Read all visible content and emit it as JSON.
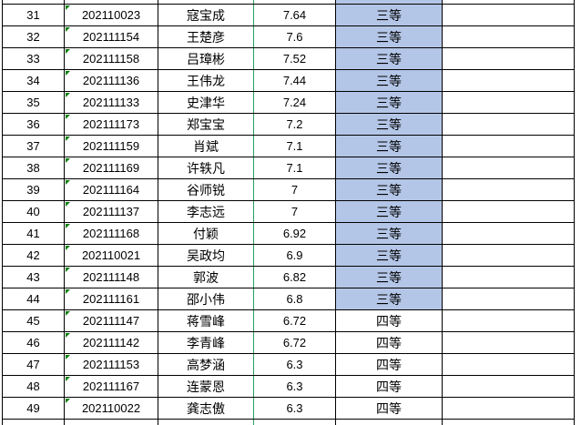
{
  "colors": {
    "grid_line": "#000000",
    "grade_highlight": "#b4c6e7",
    "page_break_line": "#1fa463",
    "error_indicator": "#0a7f0a",
    "cell_background": "#ffffff",
    "text": "#000000"
  },
  "table": {
    "rows": [
      {
        "rank": "31",
        "student_id": "202110023",
        "name": "寇宝成",
        "score": "7.64",
        "grade": "三等",
        "highlighted": true
      },
      {
        "rank": "32",
        "student_id": "202111154",
        "name": "王楚彦",
        "score": "7.6",
        "grade": "三等",
        "highlighted": true
      },
      {
        "rank": "33",
        "student_id": "202111158",
        "name": "吕璋彬",
        "score": "7.52",
        "grade": "三等",
        "highlighted": true
      },
      {
        "rank": "34",
        "student_id": "202111136",
        "name": "王伟龙",
        "score": "7.44",
        "grade": "三等",
        "highlighted": true
      },
      {
        "rank": "35",
        "student_id": "202111133",
        "name": "史津华",
        "score": "7.24",
        "grade": "三等",
        "highlighted": true
      },
      {
        "rank": "36",
        "student_id": "202111173",
        "name": "郑宝宝",
        "score": "7.2",
        "grade": "三等",
        "highlighted": true
      },
      {
        "rank": "37",
        "student_id": "202111159",
        "name": "肖斌",
        "score": "7.1",
        "grade": "三等",
        "highlighted": true
      },
      {
        "rank": "38",
        "student_id": "202111169",
        "name": "许轶凡",
        "score": "7.1",
        "grade": "三等",
        "highlighted": true
      },
      {
        "rank": "39",
        "student_id": "202111164",
        "name": "谷师锐",
        "score": "7",
        "grade": "三等",
        "highlighted": true
      },
      {
        "rank": "40",
        "student_id": "202111137",
        "name": "李志远",
        "score": "7",
        "grade": "三等",
        "highlighted": true
      },
      {
        "rank": "41",
        "student_id": "202111168",
        "name": "付颖",
        "score": "6.92",
        "grade": "三等",
        "highlighted": true
      },
      {
        "rank": "42",
        "student_id": "202110021",
        "name": "吴政均",
        "score": "6.9",
        "grade": "三等",
        "highlighted": true
      },
      {
        "rank": "43",
        "student_id": "202111148",
        "name": "郭波",
        "score": "6.82",
        "grade": "三等",
        "highlighted": true
      },
      {
        "rank": "44",
        "student_id": "202111161",
        "name": "邵小伟",
        "score": "6.8",
        "grade": "三等",
        "highlighted": true
      },
      {
        "rank": "45",
        "student_id": "202111147",
        "name": "蒋雪峰",
        "score": "6.72",
        "grade": "四等",
        "highlighted": false
      },
      {
        "rank": "46",
        "student_id": "202111142",
        "name": "李青峰",
        "score": "6.72",
        "grade": "四等",
        "highlighted": false
      },
      {
        "rank": "47",
        "student_id": "202111153",
        "name": "高梦涵",
        "score": "6.3",
        "grade": "四等",
        "highlighted": false
      },
      {
        "rank": "48",
        "student_id": "202111167",
        "name": "连蒙恩",
        "score": "6.3",
        "grade": "四等",
        "highlighted": false
      },
      {
        "rank": "49",
        "student_id": "202110022",
        "name": "龚志傲",
        "score": "6.3",
        "grade": "四等",
        "highlighted": false
      }
    ]
  }
}
